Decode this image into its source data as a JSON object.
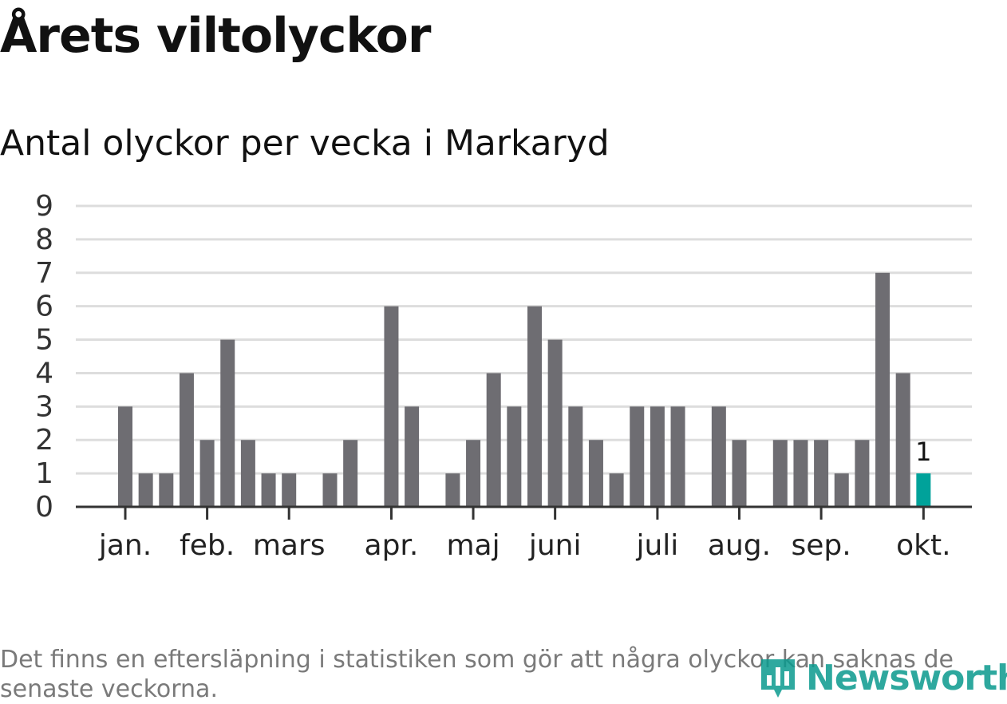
{
  "header": {
    "title": "Årets viltolyckor",
    "subtitle": "Antal olyckor per vecka i Markaryd"
  },
  "footnote": "Det finns en eftersläpning i statistiken som gör att några olyckor kan saknas de senaste veckorna.",
  "logo": {
    "text": "Newsworthy",
    "icon": "bar-chart-logo-icon"
  },
  "colors": {
    "bar": "#6e6d72",
    "highlight": "#00a29a",
    "grid": "#dddddd",
    "axis": "#333333",
    "logo": "#0a9a8e"
  },
  "chart_data": {
    "type": "bar",
    "ylim": [
      0,
      9
    ],
    "yticks": [
      0,
      1,
      2,
      3,
      4,
      5,
      6,
      7,
      8,
      9
    ],
    "grid": true,
    "week_values": [
      0,
      0,
      3,
      1,
      1,
      4,
      2,
      5,
      2,
      1,
      1,
      0,
      1,
      2,
      0,
      6,
      3,
      0,
      1,
      2,
      4,
      3,
      6,
      5,
      3,
      2,
      1,
      3,
      3,
      3,
      0,
      3,
      2,
      0,
      2,
      2,
      2,
      1,
      2,
      7,
      4,
      1
    ],
    "highlight_index": 41,
    "highlight_label": "1",
    "months": [
      {
        "label": "jan.",
        "position": 2.5
      },
      {
        "label": "feb.",
        "position": 6.5
      },
      {
        "label": "mars",
        "position": 10.5
      },
      {
        "label": "apr.",
        "position": 15.5
      },
      {
        "label": "maj",
        "position": 19.5
      },
      {
        "label": "juni",
        "position": 23.5
      },
      {
        "label": "juli",
        "position": 28.5
      },
      {
        "label": "aug.",
        "position": 32.5
      },
      {
        "label": "sep.",
        "position": 36.5
      },
      {
        "label": "okt.",
        "position": 41.5
      }
    ]
  }
}
